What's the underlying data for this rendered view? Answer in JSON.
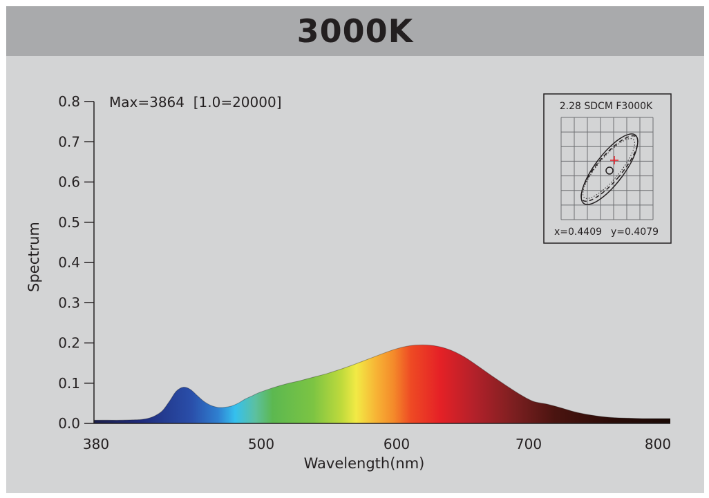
{
  "header": {
    "title": "3000K"
  },
  "colors": {
    "header_bg": "#a9aaac",
    "panel_bg": "#d3d4d5",
    "text": "#231f20",
    "marker": "#e8202a"
  },
  "chart_data": {
    "type": "area",
    "title": "3000K",
    "annotation": "Max=3864  [1.0=20000]",
    "xlabel": "Wavelength(nm)",
    "ylabel": "Spectrum",
    "xlim": [
      380,
      800
    ],
    "ylim": [
      0,
      0.8
    ],
    "x_ticks": [
      {
        "value": 380,
        "label": "380"
      },
      {
        "value": 500,
        "label": "500"
      },
      {
        "value": 600,
        "label": "600"
      },
      {
        "value": 700,
        "label": "700"
      },
      {
        "value": 800,
        "label": "800"
      }
    ],
    "y_ticks": [
      {
        "value": 0.8,
        "label": "0.8"
      },
      {
        "value": 0.7,
        "label": "0.7"
      },
      {
        "value": 0.6,
        "label": "0.6"
      },
      {
        "value": 0.5,
        "label": "0.5"
      },
      {
        "value": 0.4,
        "label": "0.4"
      },
      {
        "value": 0.3,
        "label": "0.3"
      },
      {
        "value": 0.2,
        "label": "0.2"
      },
      {
        "value": 0.1,
        "label": "0.1"
      },
      {
        "value": 0.0,
        "label": "0.0"
      }
    ],
    "series": [
      {
        "name": "Spectrum",
        "x": [
          380,
          390,
          400,
          410,
          415,
          420,
          425,
          430,
          435,
          440,
          445,
          450,
          455,
          460,
          465,
          470,
          475,
          480,
          485,
          490,
          495,
          500,
          510,
          520,
          530,
          540,
          550,
          560,
          570,
          580,
          590,
          600,
          610,
          620,
          630,
          640,
          650,
          660,
          670,
          680,
          690,
          700,
          710,
          720,
          730,
          740,
          750,
          760,
          770,
          780,
          790,
          800
        ],
        "values": [
          0.008,
          0.008,
          0.008,
          0.009,
          0.01,
          0.013,
          0.02,
          0.032,
          0.055,
          0.08,
          0.09,
          0.085,
          0.07,
          0.055,
          0.045,
          0.04,
          0.04,
          0.043,
          0.05,
          0.06,
          0.068,
          0.076,
          0.088,
          0.098,
          0.106,
          0.115,
          0.124,
          0.135,
          0.147,
          0.16,
          0.173,
          0.185,
          0.193,
          0.195,
          0.192,
          0.182,
          0.165,
          0.142,
          0.118,
          0.095,
          0.073,
          0.055,
          0.048,
          0.039,
          0.029,
          0.022,
          0.017,
          0.014,
          0.013,
          0.012,
          0.012,
          0.012
        ]
      }
    ],
    "inset": {
      "title": "2.28 SDCM F3000K",
      "x_label": "x=0.4409",
      "y_label": "y=0.4079",
      "grid_cols": 7,
      "grid_rows": 7
    }
  }
}
